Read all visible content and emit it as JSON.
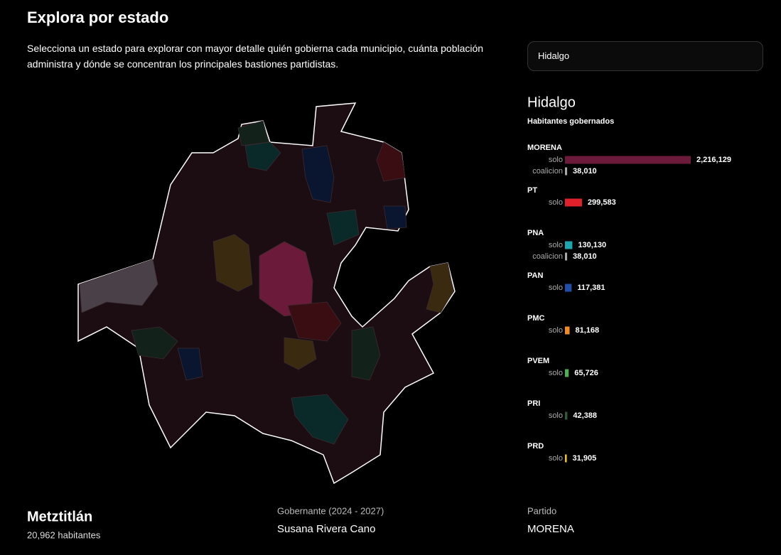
{
  "header": {
    "title": "Explora por estado",
    "description": "Selecciona un estado para explorar con mayor detalle quién gobierna cada municipio, cuánta población administra y dónde se concentran los principales bastiones partidistas.",
    "select": "Hidalgo"
  },
  "panel": {
    "state": "Hidalgo",
    "subtitle": "Habitantes gobernados",
    "parties": [
      {
        "name": "MORENA",
        "rows": [
          {
            "label": "solo",
            "value": 2216129,
            "value_label": "2,216,129",
            "color": "#6b1a3a"
          },
          {
            "label": "coalicion",
            "value": 38010,
            "value_label": "38,010",
            "color": "#aaaaaa"
          }
        ]
      },
      {
        "name": "PT",
        "rows": [
          {
            "label": "solo",
            "value": 299583,
            "value_label": "299,583",
            "color": "#e0202a"
          }
        ]
      },
      {
        "name": "PNA",
        "rows": [
          {
            "label": "solo",
            "value": 130130,
            "value_label": "130,130",
            "color": "#1aa7b0"
          },
          {
            "label": "coalicion",
            "value": 38010,
            "value_label": "38,010",
            "color": "#aaaaaa"
          }
        ]
      },
      {
        "name": "PAN",
        "rows": [
          {
            "label": "solo",
            "value": 117381,
            "value_label": "117,381",
            "color": "#1f4fa8"
          }
        ]
      },
      {
        "name": "PMC",
        "rows": [
          {
            "label": "solo",
            "value": 81168,
            "value_label": "81,168",
            "color": "#f28c1e"
          }
        ]
      },
      {
        "name": "PVEM",
        "rows": [
          {
            "label": "solo",
            "value": 65726,
            "value_label": "65,726",
            "color": "#4caf50"
          }
        ]
      },
      {
        "name": "PRI",
        "rows": [
          {
            "label": "solo",
            "value": 42388,
            "value_label": "42,388",
            "color": "#2e5b35"
          }
        ]
      },
      {
        "name": "PRD",
        "rows": [
          {
            "label": "solo",
            "value": 31905,
            "value_label": "31,905",
            "color": "#f1c40f"
          }
        ]
      }
    ]
  },
  "footer": {
    "municipality": "Metztitlán",
    "population": "20,962 habitantes",
    "governor_label": "Gobernante (2024 - 2027)",
    "governor": "Susana Rivera Cano",
    "party_label": "Partido",
    "party": "MORENA"
  }
}
